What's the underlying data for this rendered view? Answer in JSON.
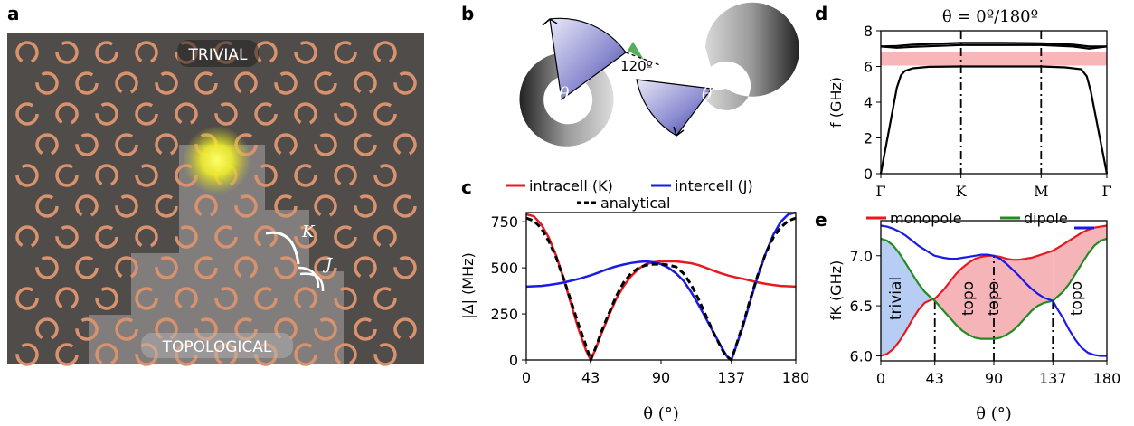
{
  "colors": {
    "red": "#e6191e",
    "blue": "#1a1ae6",
    "green": "#238b23",
    "black": "#000000",
    "band_pink": "#f7b6b8",
    "trivial_fill": "#b7cdf3",
    "topo_fill": "#f5b4b8",
    "copper": "#d9926e",
    "photo_bg": "#4f4c4a"
  },
  "panels": {
    "a": {
      "label": "a",
      "trivial_label": "TRIVIAL",
      "topological_label": "TOPOLOGICAL",
      "k_label": "K",
      "j_label": "J"
    },
    "b": {
      "label": "b",
      "theta_label": "θ",
      "angle_label": "120º"
    },
    "c": {
      "label": "c"
    },
    "d": {
      "label": "d"
    },
    "e": {
      "label": "e"
    }
  },
  "chart_data": [
    {
      "id": "c",
      "type": "line",
      "xlabel": "θ (°)",
      "ylabel": "|Δ| (MHz)",
      "xlim": [
        0,
        180
      ],
      "ylim": [
        0,
        800
      ],
      "xticks": [
        0,
        43,
        90,
        137,
        180
      ],
      "yticks": [
        0,
        250,
        500,
        750
      ],
      "legend": [
        "intracell (K)",
        "intercell (J)",
        "analytical"
      ],
      "legend_placement": "top",
      "series": [
        {
          "name": "intracell (K)",
          "color": "#e6191e",
          "x": [
            0,
            5,
            10,
            15,
            20,
            25,
            30,
            35,
            40,
            43,
            46,
            50,
            55,
            60,
            65,
            70,
            75,
            80,
            85,
            90,
            95,
            100,
            105,
            110,
            115,
            120,
            125,
            130,
            135,
            140,
            145,
            150,
            155,
            160,
            165,
            170,
            175,
            180
          ],
          "y": [
            790,
            780,
            735,
            665,
            565,
            440,
            300,
            165,
            50,
            0,
            55,
            140,
            240,
            330,
            400,
            455,
            495,
            520,
            530,
            535,
            535,
            535,
            530,
            525,
            515,
            500,
            485,
            470,
            458,
            448,
            440,
            430,
            420,
            413,
            407,
            402,
            400,
            398
          ]
        },
        {
          "name": "intercell (J)",
          "color": "#1a1ae6",
          "x": [
            0,
            5,
            10,
            15,
            20,
            25,
            30,
            35,
            40,
            45,
            50,
            55,
            60,
            65,
            70,
            75,
            80,
            85,
            90,
            95,
            100,
            105,
            110,
            115,
            120,
            125,
            130,
            134,
            137,
            140,
            145,
            150,
            155,
            160,
            165,
            170,
            175,
            180
          ],
          "y": [
            398,
            400,
            402,
            407,
            413,
            420,
            430,
            440,
            452,
            465,
            480,
            495,
            508,
            518,
            526,
            532,
            535,
            530,
            520,
            500,
            470,
            430,
            370,
            300,
            225,
            150,
            75,
            20,
            0,
            70,
            190,
            330,
            465,
            580,
            680,
            750,
            790,
            800
          ]
        },
        {
          "name": "analytical",
          "color": "#000000",
          "x": [
            0,
            5,
            10,
            15,
            20,
            25,
            30,
            35,
            40,
            43,
            47,
            50,
            55,
            60,
            65,
            70,
            75,
            80,
            85,
            90,
            95,
            100,
            105,
            110,
            115,
            120,
            125,
            130,
            133,
            137,
            140,
            145,
            150,
            155,
            160,
            165,
            170,
            175,
            180
          ],
          "y": [
            770,
            755,
            715,
            645,
            555,
            440,
            315,
            190,
            75,
            0,
            80,
            150,
            250,
            345,
            420,
            470,
            500,
            515,
            520,
            520,
            515,
            505,
            470,
            410,
            330,
            240,
            150,
            70,
            25,
            0,
            75,
            200,
            340,
            470,
            580,
            665,
            720,
            755,
            770
          ]
        }
      ]
    },
    {
      "id": "d",
      "type": "line",
      "title": "θ = 0º/180º",
      "ylabel": "f (GHz)",
      "ylim": [
        0,
        8
      ],
      "yticks": [
        0,
        2,
        4,
        6,
        8
      ],
      "xcategories": [
        "Γ",
        "K",
        "M",
        "Γ"
      ],
      "xpositions": [
        0,
        1,
        2,
        2.82
      ],
      "band_gap": [
        6.05,
        6.8
      ],
      "series": [
        {
          "name": "",
          "x": [
            0,
            0.05,
            0.1,
            0.15,
            0.2,
            0.25,
            0.3,
            0.4,
            0.6,
            1,
            1.5,
            2,
            2.3,
            2.5,
            2.57,
            2.62,
            2.67,
            2.72,
            2.77,
            2.82
          ],
          "y": [
            0,
            1.2,
            2.4,
            3.6,
            4.8,
            5.5,
            5.75,
            5.9,
            5.98,
            6.0,
            6.0,
            6.0,
            5.95,
            5.85,
            5.45,
            4.6,
            3.45,
            2.3,
            1.15,
            0
          ]
        },
        {
          "name": "",
          "x": [
            0,
            0.2,
            0.4,
            1,
            1.5,
            2,
            2.4,
            2.6,
            2.82
          ],
          "y": [
            7.12,
            7.05,
            7.1,
            7.2,
            7.2,
            7.2,
            7.12,
            7.0,
            7.12
          ]
        },
        {
          "name": "",
          "x": [
            0,
            0.2,
            0.4,
            1,
            1.5,
            2,
            2.4,
            2.6,
            2.82
          ],
          "y": [
            7.12,
            7.15,
            7.22,
            7.32,
            7.32,
            7.3,
            7.22,
            7.12,
            7.12
          ]
        }
      ],
      "vlines": [
        1,
        2
      ]
    },
    {
      "id": "e",
      "type": "line",
      "xlabel": "θ (°)",
      "ylabel": "fK (GHz)",
      "xlim": [
        0,
        180
      ],
      "ylim": [
        5.95,
        7.35
      ],
      "xticks": [
        0,
        43,
        90,
        137,
        180
      ],
      "yticks": [
        6.0,
        6.5,
        7.0
      ],
      "legend": [
        "monopole",
        "dipole"
      ],
      "legend_placement": "top",
      "region_labels": [
        "trivial",
        "topo",
        "topo",
        "topo"
      ],
      "vlines": [
        43,
        90,
        137
      ],
      "series": [
        {
          "name": "monopole",
          "color": "#e6191e",
          "x": [
            0,
            5,
            10,
            15,
            20,
            25,
            30,
            35,
            40,
            43,
            50,
            55,
            60,
            65,
            70,
            75,
            80,
            85,
            90,
            95,
            100,
            105,
            110,
            115,
            120,
            125,
            130,
            137,
            145,
            150,
            155,
            160,
            165,
            170,
            175,
            180
          ],
          "y": [
            6.0,
            6.02,
            6.07,
            6.15,
            6.25,
            6.36,
            6.46,
            6.53,
            6.56,
            6.57,
            6.66,
            6.74,
            6.82,
            6.88,
            6.93,
            6.97,
            6.99,
            7.0,
            7.0,
            6.99,
            6.97,
            6.96,
            6.96,
            6.97,
            6.98,
            7.0,
            7.02,
            7.05,
            7.11,
            7.15,
            7.19,
            7.23,
            7.26,
            7.28,
            7.29,
            7.3
          ]
        },
        {
          "name": "",
          "color": "#1a1ae6",
          "x": [
            0,
            5,
            10,
            15,
            20,
            25,
            30,
            35,
            40,
            43,
            50,
            55,
            60,
            65,
            70,
            75,
            80,
            85,
            90,
            95,
            100,
            105,
            110,
            115,
            120,
            125,
            130,
            137,
            140,
            145,
            150,
            155,
            160,
            165,
            170,
            175,
            180
          ],
          "y": [
            7.3,
            7.29,
            7.27,
            7.24,
            7.2,
            7.15,
            7.1,
            7.06,
            7.02,
            7.0,
            6.98,
            6.97,
            6.97,
            6.98,
            6.99,
            7.0,
            7.01,
            7.01,
            7.0,
            6.97,
            6.92,
            6.86,
            6.8,
            6.73,
            6.67,
            6.62,
            6.58,
            6.55,
            6.48,
            6.38,
            6.26,
            6.16,
            6.08,
            6.03,
            6.01,
            6.0,
            6.0
          ]
        },
        {
          "name": "dipole",
          "color": "#238b23",
          "x": [
            0,
            5,
            10,
            15,
            20,
            25,
            30,
            35,
            40,
            43,
            50,
            55,
            60,
            65,
            70,
            75,
            80,
            85,
            90,
            95,
            100,
            105,
            110,
            115,
            120,
            125,
            130,
            137,
            145,
            150,
            155,
            160,
            165,
            170,
            175,
            180
          ],
          "y": [
            7.17,
            7.15,
            7.1,
            7.02,
            6.92,
            6.82,
            6.72,
            6.64,
            6.58,
            6.55,
            6.45,
            6.38,
            6.31,
            6.25,
            6.21,
            6.18,
            6.17,
            6.17,
            6.17,
            6.18,
            6.21,
            6.25,
            6.31,
            6.38,
            6.45,
            6.5,
            6.53,
            6.55,
            6.64,
            6.72,
            6.82,
            6.92,
            7.02,
            7.1,
            7.15,
            7.17
          ]
        }
      ]
    }
  ]
}
